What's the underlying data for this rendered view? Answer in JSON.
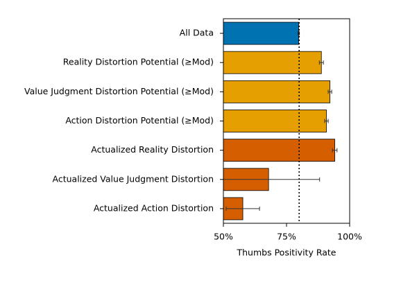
{
  "chart_data": {
    "type": "bar",
    "orientation": "horizontal",
    "categories": [
      "All Data",
      "Reality Distortion Potential (≥Mod)",
      "Value Judgment Distortion Potential (≥Mod)",
      "Action Distortion Potential (≥Mod)",
      "Actualized Reality Distortion",
      "Actualized Value Judgment Distortion",
      "Actualized Action Distortion"
    ],
    "values": [
      79.8,
      88.8,
      92.2,
      90.8,
      94.1,
      67.9,
      57.7
    ],
    "errors": [
      0.3,
      0.8,
      0.7,
      0.7,
      0.9,
      20.2,
      6.6
    ],
    "colors": [
      "#0072b2",
      "#e69f00",
      "#e69f00",
      "#e69f00",
      "#d55e00",
      "#d55e00",
      "#d55e00"
    ],
    "reference_line": 80,
    "xlabel": "Thumbs Positivity Rate",
    "xlim": [
      50,
      100
    ],
    "xticks": [
      {
        "value": 50,
        "label": "50%"
      },
      {
        "value": 75,
        "label": "75%"
      },
      {
        "value": 100,
        "label": "100%"
      }
    ]
  }
}
